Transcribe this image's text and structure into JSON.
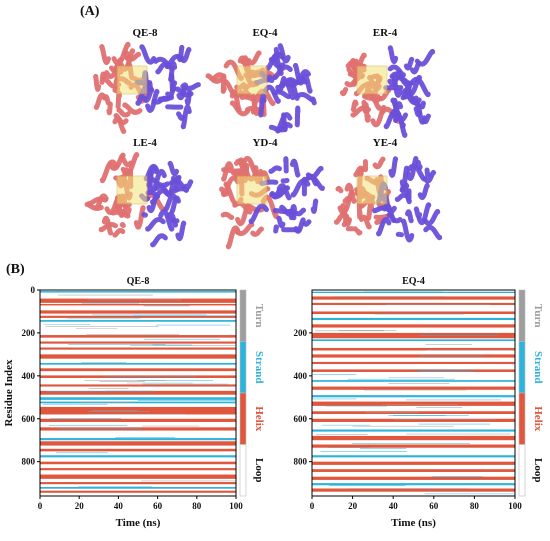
{
  "panel_a": {
    "label": "(A)",
    "structures": [
      {
        "name": "QE-8"
      },
      {
        "name": "EQ-4"
      },
      {
        "name": "ER-4"
      },
      {
        "name": "LE-4"
      },
      {
        "name": "YD-4"
      },
      {
        "name": "YE-4"
      }
    ]
  },
  "panel_b": {
    "label": "(B)"
  },
  "colors": {
    "turn": "#9e9e9e",
    "strand": "#2db4dc",
    "helix": "#e0573e",
    "loop": "#ffffff",
    "protein_a": "#e07070",
    "protein_b": "#6a4fd8",
    "ligand_box": "#f3e27a"
  },
  "chart_data": [
    {
      "type": "heatmap",
      "title": "QE-8",
      "xlabel": "Time (ns)",
      "ylabel": "Residue Index",
      "xlim": [
        0,
        100
      ],
      "ylim": [
        0,
        960
      ],
      "xticks": [
        0,
        20,
        40,
        60,
        80,
        100
      ],
      "yticks": [
        0,
        200,
        400,
        600,
        800
      ],
      "legend": [
        "Turn",
        "Strand",
        "Helix",
        "Loop"
      ],
      "legend_placement": "right",
      "bands": [
        {
          "y0": 5,
          "y1": 12,
          "type": "strand"
        },
        {
          "y0": 40,
          "y1": 60,
          "type": "helix"
        },
        {
          "y0": 65,
          "y1": 72,
          "type": "helix"
        },
        {
          "y0": 95,
          "y1": 110,
          "type": "helix"
        },
        {
          "y0": 120,
          "y1": 130,
          "type": "helix"
        },
        {
          "y0": 140,
          "y1": 148,
          "type": "strand"
        },
        {
          "y0": 210,
          "y1": 222,
          "type": "helix"
        },
        {
          "y0": 240,
          "y1": 250,
          "type": "helix"
        },
        {
          "y0": 268,
          "y1": 278,
          "type": "helix"
        },
        {
          "y0": 300,
          "y1": 320,
          "type": "helix"
        },
        {
          "y0": 340,
          "y1": 348,
          "type": "strand"
        },
        {
          "y0": 365,
          "y1": 378,
          "type": "helix"
        },
        {
          "y0": 398,
          "y1": 410,
          "type": "helix"
        },
        {
          "y0": 440,
          "y1": 450,
          "type": "helix"
        },
        {
          "y0": 470,
          "y1": 488,
          "type": "helix"
        },
        {
          "y0": 500,
          "y1": 512,
          "type": "strand"
        },
        {
          "y0": 520,
          "y1": 528,
          "type": "strand"
        },
        {
          "y0": 545,
          "y1": 580,
          "type": "helix"
        },
        {
          "y0": 600,
          "y1": 615,
          "type": "helix"
        },
        {
          "y0": 640,
          "y1": 655,
          "type": "helix"
        },
        {
          "y0": 690,
          "y1": 700,
          "type": "strand"
        },
        {
          "y0": 705,
          "y1": 725,
          "type": "helix"
        },
        {
          "y0": 740,
          "y1": 752,
          "type": "helix"
        },
        {
          "y0": 770,
          "y1": 780,
          "type": "strand"
        },
        {
          "y0": 800,
          "y1": 812,
          "type": "helix"
        },
        {
          "y0": 830,
          "y1": 840,
          "type": "helix"
        },
        {
          "y0": 860,
          "y1": 880,
          "type": "helix"
        },
        {
          "y0": 895,
          "y1": 905,
          "type": "helix"
        },
        {
          "y0": 918,
          "y1": 926,
          "type": "strand"
        },
        {
          "y0": 935,
          "y1": 945,
          "type": "helix"
        }
      ]
    },
    {
      "type": "heatmap",
      "title": "EQ-4",
      "xlabel": "Time (ns)",
      "ylabel": "",
      "xlim": [
        0,
        100
      ],
      "ylim": [
        0,
        960
      ],
      "xticks": [
        0,
        20,
        40,
        60,
        80,
        100
      ],
      "yticks": [
        200,
        400,
        600,
        800
      ],
      "legend": [
        "Turn",
        "Strand",
        "Helix",
        "Loop"
      ],
      "legend_placement": "right",
      "bands": [
        {
          "y0": 8,
          "y1": 14,
          "type": "strand"
        },
        {
          "y0": 30,
          "y1": 45,
          "type": "helix"
        },
        {
          "y0": 60,
          "y1": 70,
          "type": "helix"
        },
        {
          "y0": 100,
          "y1": 112,
          "type": "helix"
        },
        {
          "y0": 130,
          "y1": 140,
          "type": "strand"
        },
        {
          "y0": 160,
          "y1": 175,
          "type": "helix"
        },
        {
          "y0": 200,
          "y1": 225,
          "type": "helix"
        },
        {
          "y0": 230,
          "y1": 238,
          "type": "strand"
        },
        {
          "y0": 270,
          "y1": 282,
          "type": "helix"
        },
        {
          "y0": 300,
          "y1": 315,
          "type": "helix"
        },
        {
          "y0": 335,
          "y1": 345,
          "type": "helix"
        },
        {
          "y0": 370,
          "y1": 382,
          "type": "helix"
        },
        {
          "y0": 420,
          "y1": 428,
          "type": "strand"
        },
        {
          "y0": 450,
          "y1": 465,
          "type": "helix"
        },
        {
          "y0": 490,
          "y1": 500,
          "type": "strand"
        },
        {
          "y0": 520,
          "y1": 540,
          "type": "helix"
        },
        {
          "y0": 565,
          "y1": 578,
          "type": "helix"
        },
        {
          "y0": 600,
          "y1": 615,
          "type": "helix"
        },
        {
          "y0": 650,
          "y1": 660,
          "type": "strand"
        },
        {
          "y0": 680,
          "y1": 700,
          "type": "helix"
        },
        {
          "y0": 720,
          "y1": 735,
          "type": "helix"
        },
        {
          "y0": 770,
          "y1": 780,
          "type": "strand"
        },
        {
          "y0": 800,
          "y1": 815,
          "type": "helix"
        },
        {
          "y0": 835,
          "y1": 848,
          "type": "helix"
        },
        {
          "y0": 870,
          "y1": 885,
          "type": "helix"
        },
        {
          "y0": 900,
          "y1": 910,
          "type": "strand"
        },
        {
          "y0": 925,
          "y1": 940,
          "type": "helix"
        }
      ]
    }
  ]
}
